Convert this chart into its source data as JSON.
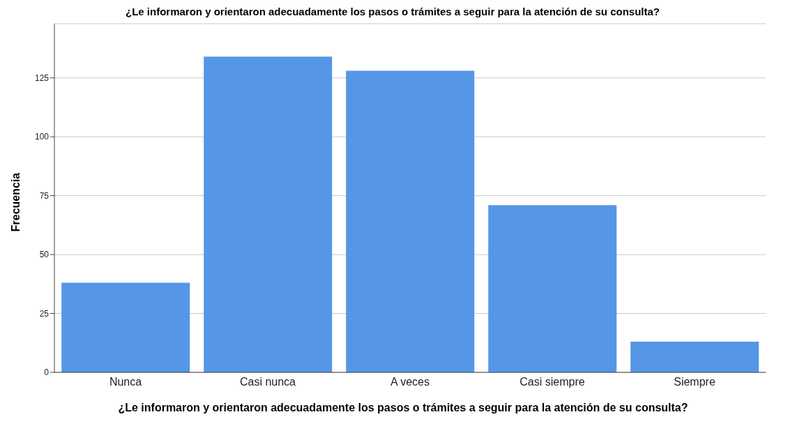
{
  "chart_data": {
    "type": "bar",
    "title": "¿Le informaron y orientaron adecuadamente los pasos o trámites a seguir para la atención de su consulta?",
    "xlabel": "¿Le informaron y orientaron adecuadamente los pasos o trámites a seguir para la atención de su consulta?",
    "ylabel": "Frecuencia",
    "categories": [
      "Nunca",
      "Casi nunca",
      "A veces",
      "Casi siempre",
      "Siempre"
    ],
    "values": [
      38,
      134,
      128,
      71,
      13
    ],
    "color": "#5596e6",
    "ylim": [
      0,
      148
    ],
    "yticks": [
      0,
      25,
      50,
      75,
      100,
      125
    ],
    "grid": "y"
  }
}
